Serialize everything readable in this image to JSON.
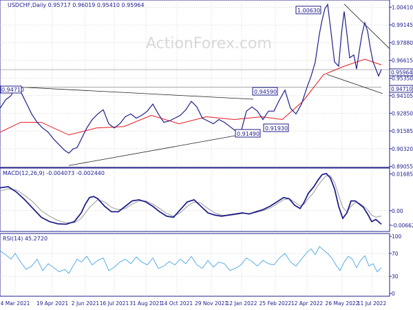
{
  "colors": {
    "price": "#1e1e8a",
    "ma": "#e8141e",
    "trend": "#202020",
    "hline": "#888888",
    "grid": "#b8b8b8",
    "panel_border": "#1e1e8a",
    "macd": "#1e1e8a",
    "signal": "#999999",
    "rsi": "#56aee6",
    "label_text": "#1a1a8c",
    "current_bg": "#ffffff"
  },
  "header": {
    "title": "USDCHF,Daily  0.95717 0.96019 0.95410 0.95964",
    "watermark": "ActionForex.com"
  },
  "chart_data": [
    {
      "type": "line",
      "title": "USDCHF,Daily",
      "ohlc": {
        "open": 0.95717,
        "high": 0.96019,
        "low": 0.9541,
        "close": 0.95964
      },
      "y_ticks": [
        "1.00410",
        "0.99145",
        "0.97880",
        "0.96615",
        "0.95350",
        "0.94105",
        "0.92850",
        "0.91585",
        "0.90320",
        "0.89055"
      ],
      "ylim": [
        0.8899,
        1.0092
      ],
      "x_ticks": [
        "4 Mar 2021",
        "19 Apr 2021",
        "2 Jun 2021",
        "16 Jul 2021",
        "31 Aug 2021",
        "14 Oct 2021",
        "29 Nov 2021",
        "12 Jan 2022",
        "25 Feb 2022",
        "12 Apr 2022",
        "26 May 2022",
        "11 Jul 2022"
      ],
      "current_price_label": "0.95964",
      "level_label": "0.94710",
      "annotations": [
        "0.94710",
        "0.94590",
        "0.91490",
        "0.91930",
        "1.00630"
      ],
      "series": [
        {
          "x": [
            0,
            8,
            16,
            22,
            30,
            38,
            46,
            54,
            62,
            70,
            78,
            86,
            94,
            100,
            106,
            112,
            118,
            126,
            134,
            142,
            150,
            158,
            166,
            174,
            182,
            190,
            198,
            206,
            214,
            222,
            230,
            238,
            246,
            254,
            262,
            270,
            278,
            286,
            294,
            302,
            310,
            318,
            326,
            334,
            342,
            350,
            358,
            366,
            374,
            382,
            390,
            398,
            406,
            414,
            422,
            430,
            438,
            446,
            452,
            458,
            464,
            468,
            472,
            476,
            480,
            486,
            492,
            496,
            500,
            504,
            508,
            514,
            518,
            522,
            526,
            530,
            534,
            538,
            542,
            546,
            550,
            554
          ],
          "values": [
            0.932,
            0.938,
            0.941,
            0.947,
            0.944,
            0.936,
            0.928,
            0.922,
            0.918,
            0.915,
            0.91,
            0.906,
            0.902,
            0.9,
            0.903,
            0.904,
            0.91,
            0.918,
            0.924,
            0.928,
            0.931,
            0.921,
            0.918,
            0.921,
            0.926,
            0.928,
            0.925,
            0.927,
            0.93,
            0.935,
            0.928,
            0.922,
            0.923,
            0.925,
            0.927,
            0.931,
            0.937,
            0.933,
            0.925,
            0.923,
            0.921,
            0.924,
            0.922,
            0.919,
            0.916,
            0.915,
            0.93,
            0.933,
            0.93,
            0.924,
            0.93,
            0.93,
            0.938,
            0.945,
            0.932,
            0.928,
            0.935,
            0.947,
            0.955,
            0.965,
            0.985,
            0.995,
            1.003,
            1.006,
            0.99,
            0.965,
            0.962,
            0.985,
            1.001,
            0.985,
            0.968,
            0.97,
            0.96,
            0.973,
            0.985,
            0.993,
            0.987,
            0.975,
            0.965,
            0.96,
            0.955,
            0.9596
          ],
          "name": ""
        },
        {
          "x": [
            0,
            30,
            60,
            100,
            140,
            180,
            220,
            260,
            300,
            340,
            380,
            410,
            440,
            470,
            500,
            530,
            554
          ],
          "values": [
            0.915,
            0.922,
            0.922,
            0.913,
            0.918,
            0.919,
            0.927,
            0.921,
            0.926,
            0.924,
            0.926,
            0.924,
            0.937,
            0.956,
            0.962,
            0.967,
            0.963
          ],
          "name": ""
        }
      ],
      "trendlines": [
        {
          "x": [
            30,
            368
          ],
          "values": [
            0.9471,
            0.9385
          ]
        },
        {
          "x": [
            100,
            368
          ],
          "values": [
            0.8912,
            0.9148
          ]
        },
        {
          "x": [
            0,
            554
          ],
          "values": [
            0.9471,
            0.9471
          ]
        },
        {
          "x": [
            500,
            566
          ],
          "values": [
            1.0063,
            0.9745
          ]
        },
        {
          "x": [
            475,
            556
          ],
          "values": [
            0.9562,
            0.9425
          ]
        }
      ]
    },
    {
      "type": "line",
      "title": "MACD(12,26,9) -0.004073 -0.002440",
      "y_ticks": [
        "0.016855",
        "0.00",
        "-0.006629"
      ],
      "ylim": [
        -0.0095,
        0.0195
      ],
      "series": [
        {
          "x": [
            0,
            12,
            24,
            36,
            48,
            60,
            72,
            84,
            96,
            108,
            118,
            124,
            130,
            136,
            142,
            152,
            162,
            172,
            182,
            192,
            202,
            212,
            222,
            232,
            242,
            252,
            262,
            272,
            282,
            292,
            302,
            312,
            322,
            332,
            342,
            352,
            362,
            372,
            382,
            392,
            402,
            412,
            420,
            428,
            436,
            442,
            448,
            456,
            462,
            468,
            474,
            480,
            486,
            492,
            498,
            504,
            510,
            516,
            522,
            528,
            534,
            540,
            546,
            554
          ],
          "values": [
            0.0105,
            0.011,
            0.0085,
            0.005,
            0.001,
            -0.003,
            -0.005,
            -0.006,
            -0.0062,
            -0.005,
            -0.001,
            0.003,
            0.006,
            0.0065,
            0.0055,
            0.002,
            -0.0005,
            -0.0005,
            0.002,
            0.0045,
            0.005,
            0.004,
            0.002,
            -0.0005,
            -0.0025,
            -0.003,
            0.0005,
            0.004,
            0.005,
            0.002,
            -0.001,
            -0.002,
            -0.0025,
            -0.002,
            -0.0015,
            -0.001,
            -0.0015,
            -0.0005,
            0.0005,
            0.002,
            0.004,
            0.006,
            0.0055,
            0.0025,
            0.001,
            0.004,
            0.008,
            0.011,
            0.014,
            0.0165,
            0.017,
            0.015,
            0.01,
            0.002,
            -0.0035,
            -0.001,
            0.0045,
            0.0045,
            0.003,
            0.0015,
            -0.0015,
            -0.005,
            -0.004,
            -0.0062
          ],
          "name": ""
        },
        {
          "x": [
            0,
            12,
            24,
            36,
            48,
            60,
            72,
            84,
            96,
            108,
            118,
            130,
            142,
            152,
            162,
            172,
            182,
            192,
            202,
            212,
            222,
            232,
            242,
            252,
            262,
            272,
            282,
            292,
            302,
            312,
            322,
            332,
            342,
            352,
            362,
            372,
            382,
            392,
            402,
            412,
            420,
            428,
            436,
            442,
            448,
            456,
            462,
            468,
            474,
            480,
            486,
            492,
            498,
            504,
            510,
            516,
            522,
            528,
            534,
            540,
            546,
            554
          ],
          "values": [
            0.009,
            0.01,
            0.0095,
            0.007,
            0.004,
            0.0,
            -0.0025,
            -0.0045,
            -0.0055,
            -0.0055,
            -0.0035,
            0.0015,
            0.005,
            0.004,
            0.0015,
            0.0005,
            0.001,
            0.003,
            0.0045,
            0.0045,
            0.003,
            0.001,
            -0.0012,
            -0.0025,
            -0.001,
            0.002,
            0.004,
            0.0035,
            0.001,
            -0.001,
            -0.002,
            -0.0022,
            -0.0018,
            -0.0013,
            -0.0013,
            -0.0008,
            0.0,
            0.0012,
            0.003,
            0.005,
            0.0055,
            0.004,
            0.0022,
            0.003,
            0.0055,
            0.0085,
            0.0115,
            0.014,
            0.016,
            0.016,
            0.013,
            0.007,
            0.0015,
            -0.0005,
            0.002,
            0.0038,
            0.0035,
            0.0022,
            0.0005,
            -0.002,
            -0.003,
            -0.0024
          ],
          "name": ""
        }
      ]
    },
    {
      "type": "line",
      "title": "RSI(14) 45.2720",
      "y_ticks": [
        "100",
        "70",
        "30",
        "0"
      ],
      "ylim": [
        0,
        100
      ],
      "series": [
        {
          "x": [
            0,
            8,
            16,
            22,
            30,
            38,
            46,
            54,
            62,
            70,
            78,
            86,
            94,
            100,
            106,
            112,
            118,
            126,
            134,
            142,
            150,
            158,
            166,
            174,
            182,
            190,
            198,
            206,
            214,
            222,
            230,
            238,
            246,
            254,
            262,
            270,
            278,
            286,
            294,
            302,
            310,
            318,
            326,
            334,
            342,
            350,
            358,
            366,
            374,
            382,
            390,
            398,
            406,
            414,
            422,
            430,
            438,
            446,
            452,
            458,
            464,
            470,
            476,
            482,
            488,
            494,
            500,
            506,
            512,
            518,
            524,
            530,
            536,
            542,
            548,
            554
          ],
          "values": [
            75,
            68,
            60,
            70,
            55,
            42,
            48,
            60,
            40,
            52,
            45,
            38,
            42,
            35,
            48,
            60,
            55,
            65,
            50,
            58,
            62,
            40,
            46,
            55,
            60,
            52,
            64,
            55,
            50,
            62,
            44,
            48,
            56,
            50,
            60,
            52,
            65,
            50,
            44,
            58,
            46,
            55,
            52,
            40,
            44,
            50,
            62,
            56,
            48,
            58,
            52,
            50,
            62,
            70,
            55,
            48,
            60,
            72,
            78,
            68,
            82,
            76,
            70,
            62,
            50,
            40,
            55,
            65,
            60,
            45,
            58,
            66,
            48,
            52,
            38,
            45
          ],
          "name": ""
        }
      ]
    }
  ]
}
